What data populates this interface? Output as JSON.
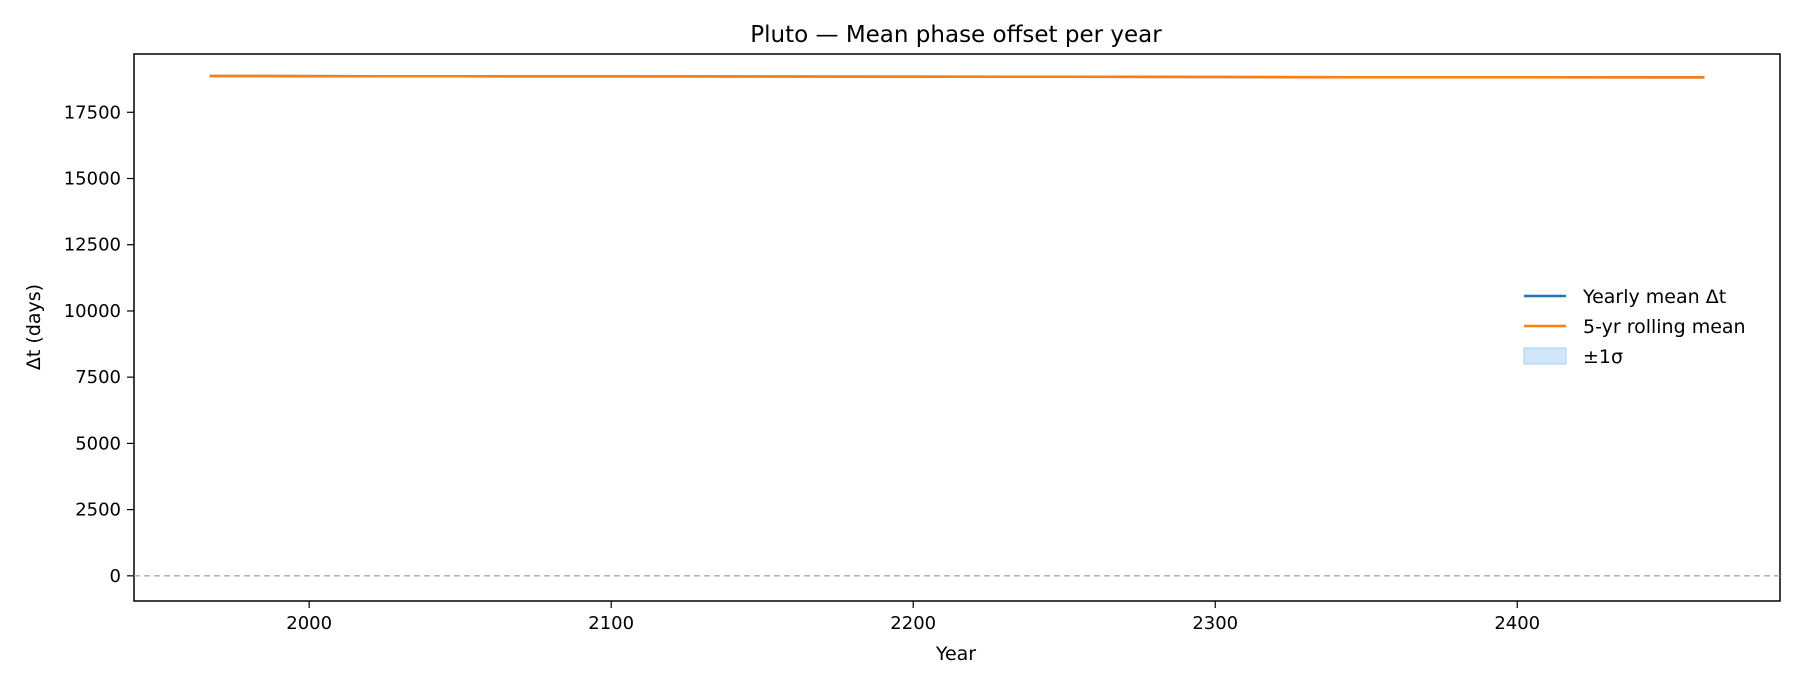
{
  "chart_data": {
    "type": "line",
    "title": "Pluto — Mean phase offset per year",
    "xlabel": "Year",
    "ylabel": "Δt (days)",
    "xlim": [
      1942,
      2487
    ],
    "ylim": [
      -950,
      19700
    ],
    "x_ticks": [
      2000,
      2100,
      2200,
      2300,
      2400
    ],
    "y_ticks": [
      0,
      2500,
      5000,
      7500,
      10000,
      12500,
      15000,
      17500
    ],
    "reference_line": {
      "y": 0,
      "style": "dashed",
      "color": "#aaaaaa"
    },
    "grid": false,
    "legend_position": "center-right",
    "series": [
      {
        "name": "Yearly mean Δt",
        "color": "#1f77b4",
        "x": [
          1967,
          2000,
          2050,
          2100,
          2150,
          2200,
          2250,
          2300,
          2350,
          2400,
          2462
        ],
        "values": [
          18870,
          18865,
          18860,
          18855,
          18850,
          18845,
          18840,
          18830,
          18825,
          18820,
          18815
        ]
      },
      {
        "name": "5-yr rolling mean",
        "color": "#ff7f0e",
        "x": [
          1967,
          2000,
          2050,
          2100,
          2150,
          2200,
          2250,
          2300,
          2350,
          2400,
          2462
        ],
        "values": [
          18870,
          18865,
          18860,
          18855,
          18850,
          18845,
          18840,
          18830,
          18825,
          18820,
          18815
        ]
      }
    ],
    "band": {
      "name": "±1σ",
      "color": "#cfe6fb",
      "edge_color": "#a9d2f5"
    }
  }
}
